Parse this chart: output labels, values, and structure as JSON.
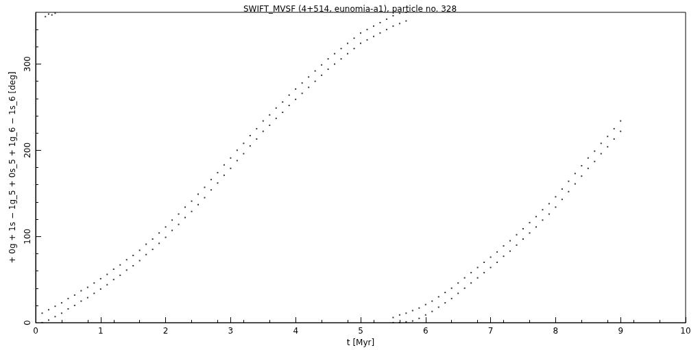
{
  "chart_data": {
    "type": "scatter",
    "title": "SWIFT_MVSF (4+514, eunomia-a1), particle no. 328",
    "xlabel": "t [Myr]",
    "ylabel": "+ 0g + 1s − 1g_5 + 0s_5 + 1g_6 − 1s_6 [deg]",
    "xlim": [
      0,
      10
    ],
    "xticks": [
      0,
      1,
      2,
      3,
      4,
      5,
      6,
      7,
      8,
      9,
      10
    ],
    "ylim": [
      0,
      360
    ],
    "yticks": [
      0,
      100,
      200,
      300
    ],
    "grid": false,
    "marker": "square",
    "series": [
      {
        "color": "#000000",
        "x": [
          0.1,
          0.1,
          0.2,
          0.2,
          0.3,
          0.3,
          0.4,
          0.4,
          0.5,
          0.5,
          0.6,
          0.6,
          0.7,
          0.7,
          0.8,
          0.8,
          0.9,
          0.9,
          1.0,
          1.0,
          1.1,
          1.1,
          1.2,
          1.2,
          1.3,
          1.3,
          1.4,
          1.4,
          1.5,
          1.5,
          1.6,
          1.6,
          1.7,
          1.7,
          1.8,
          1.8,
          1.9,
          1.9,
          2.0,
          2.0,
          2.1,
          2.1,
          2.2,
          2.2,
          2.3,
          2.3,
          2.4,
          2.4,
          2.5,
          2.5,
          2.6,
          2.6,
          2.7,
          2.7,
          2.8,
          2.8,
          2.9,
          2.9,
          3.0,
          3.0,
          3.1,
          3.1,
          3.2,
          3.2,
          3.3,
          3.3,
          3.4,
          3.4,
          3.5,
          3.5,
          3.6,
          3.6,
          3.7,
          3.7,
          3.8,
          3.8,
          3.9,
          3.9,
          4.0,
          4.0,
          4.1,
          4.1,
          4.2,
          4.2,
          4.3,
          4.3,
          4.4,
          4.4,
          4.5,
          4.5,
          4.6,
          4.6,
          4.7,
          4.7,
          4.8,
          4.8,
          4.9,
          4.9,
          5.0,
          5.0,
          5.1,
          5.1,
          5.2,
          5.2,
          5.3,
          5.3,
          5.4,
          5.4,
          5.5,
          5.5,
          5.6,
          5.6,
          5.7,
          5.7,
          5.5,
          5.5,
          5.6,
          5.6,
          5.7,
          5.7,
          5.8,
          5.8,
          5.9,
          5.9,
          6.0,
          6.0,
          6.1,
          6.1,
          6.2,
          6.2,
          6.3,
          6.3,
          6.4,
          6.4,
          6.5,
          6.5,
          6.6,
          6.6,
          6.7,
          6.7,
          6.8,
          6.8,
          6.9,
          6.9,
          7.0,
          7.0,
          7.1,
          7.1,
          7.2,
          7.2,
          7.3,
          7.3,
          7.4,
          7.4,
          7.5,
          7.5,
          7.6,
          7.6,
          7.7,
          7.7,
          7.8,
          7.8,
          7.9,
          7.9,
          8.0,
          8.0,
          8.1,
          8.1,
          8.2,
          8.2,
          8.3,
          8.3,
          8.4,
          8.4,
          8.5,
          8.5,
          8.6,
          8.6,
          8.7,
          8.7,
          8.8,
          8.8,
          8.9,
          8.9,
          9.0,
          9.0,
          0.15,
          0.2,
          0.25,
          0.3
        ],
        "values": [
          0,
          11,
          3,
          15,
          7,
          19,
          11,
          23,
          16,
          28,
          20,
          32,
          25,
          37,
          29,
          41,
          34,
          46,
          39,
          51,
          44,
          56,
          50,
          62,
          55,
          67,
          61,
          73,
          66,
          78,
          72,
          84,
          79,
          91,
          85,
          97,
          92,
          104,
          99,
          111,
          107,
          119,
          114,
          126,
          122,
          134,
          129,
          141,
          137,
          149,
          145,
          157,
          154,
          166,
          162,
          174,
          171,
          183,
          179,
          191,
          188,
          200,
          196,
          208,
          205,
          217,
          213,
          225,
          222,
          234,
          229,
          241,
          237,
          249,
          244,
          256,
          252,
          264,
          259,
          271,
          266,
          278,
          273,
          285,
          280,
          292,
          287,
          299,
          294,
          306,
          300,
          312,
          306,
          318,
          312,
          324,
          318,
          330,
          324,
          336,
          328,
          340,
          332,
          344,
          336,
          348,
          340,
          352,
          344,
          356,
          347,
          359,
          350,
          360,
          0,
          6,
          0,
          9,
          1,
          11,
          2,
          14,
          5,
          17,
          9,
          21,
          13,
          25,
          18,
          30,
          23,
          35,
          28,
          40,
          34,
          46,
          40,
          52,
          46,
          58,
          52,
          64,
          58,
          70,
          64,
          76,
          70,
          82,
          77,
          89,
          83,
          95,
          90,
          102,
          97,
          109,
          104,
          116,
          111,
          123,
          119,
          131,
          126,
          138,
          134,
          146,
          143,
          155,
          152,
          164,
          161,
          173,
          170,
          182,
          179,
          191,
          187,
          199,
          196,
          208,
          204,
          216,
          213,
          225,
          222,
          234,
          355,
          358,
          357,
          359
        ]
      }
    ]
  }
}
